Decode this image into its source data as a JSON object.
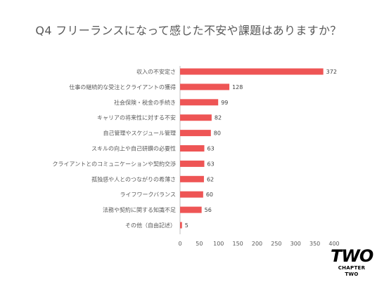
{
  "chart_data": {
    "type": "bar",
    "orientation": "horizontal",
    "title": "Q4 フリーランスになって感じた不安や課題はありますか？",
    "categories": [
      "収入の不安定さ",
      "仕事の継続的な受注とクライアントの獲得",
      "社会保険・税金の手続き",
      "キャリアの将来性に対する不安",
      "自己管理やスケジュール管理",
      "スキルの向上や自己研鑽の必要性",
      "クライアントとのコミュニケーションや契約交渉",
      "孤独感や人とのつながりの希薄さ",
      "ライフワークバランス",
      "法務や契約に関する知識不足",
      "その他（自由記述）"
    ],
    "values": [
      372,
      128,
      99,
      82,
      80,
      63,
      63,
      62,
      60,
      56,
      5
    ],
    "data_labels": [
      "372",
      "128",
      "99",
      "82",
      "80",
      "63",
      "63",
      "62",
      "60",
      "56",
      "5"
    ],
    "xlim": [
      0,
      400
    ],
    "xticks": [
      "0",
      "50",
      "100",
      "150",
      "200",
      "250",
      "300",
      "350",
      "400"
    ],
    "bar_color": "#ee5555",
    "grid": false,
    "legend": "none"
  },
  "logo": {
    "mark": "TWO",
    "text": "CHAPTER TWO"
  }
}
